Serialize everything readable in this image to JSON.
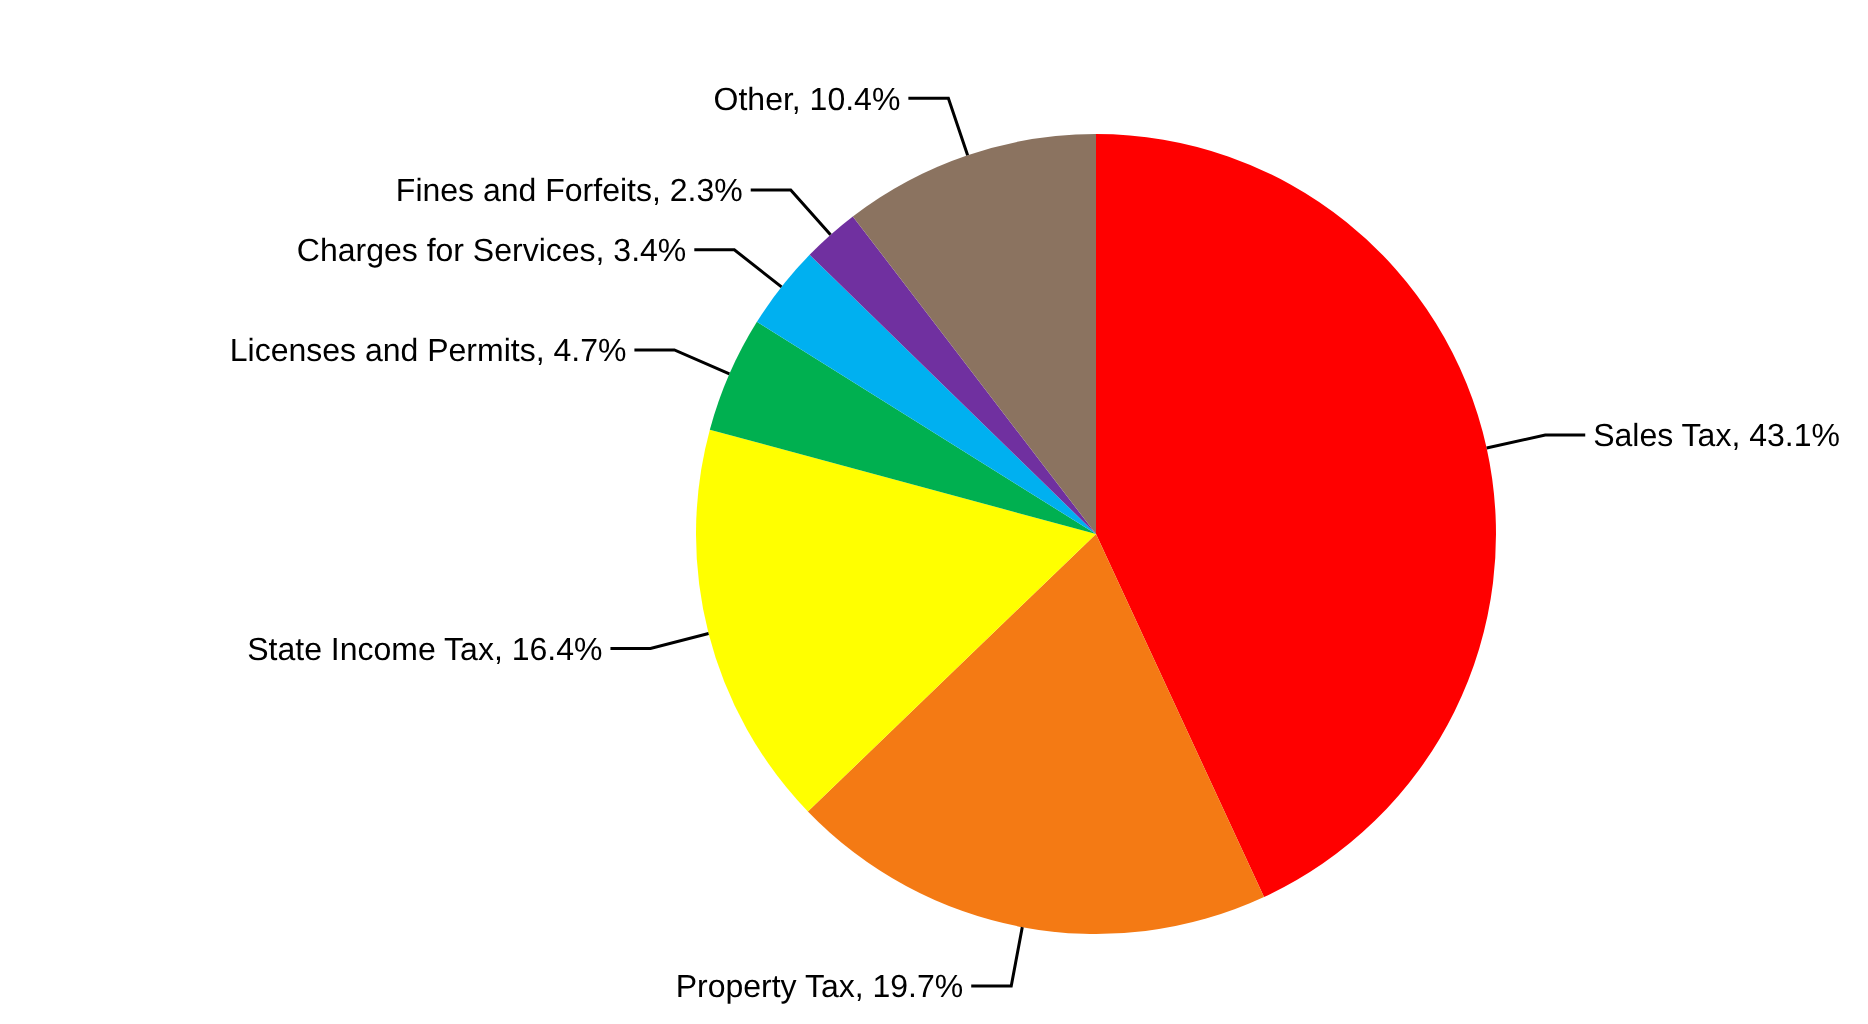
{
  "chart_data": {
    "type": "pie",
    "categories": [
      "Sales Tax",
      "Property Tax",
      "State Income Tax",
      "Licenses and Permits",
      "Charges for Services",
      "Fines and Forfeits",
      "Other"
    ],
    "values": [
      43.1,
      19.7,
      16.4,
      4.7,
      3.4,
      2.3,
      10.4
    ],
    "value_labels": [
      "43.1%",
      "19.7%",
      "16.4%",
      "4.7%",
      "3.4%",
      "2.3%",
      "10.4%"
    ],
    "colors": [
      "#ff0000",
      "#f47a14",
      "#ffff00",
      "#00b050",
      "#00b0f0",
      "#7030a0",
      "#8b7360"
    ]
  }
}
